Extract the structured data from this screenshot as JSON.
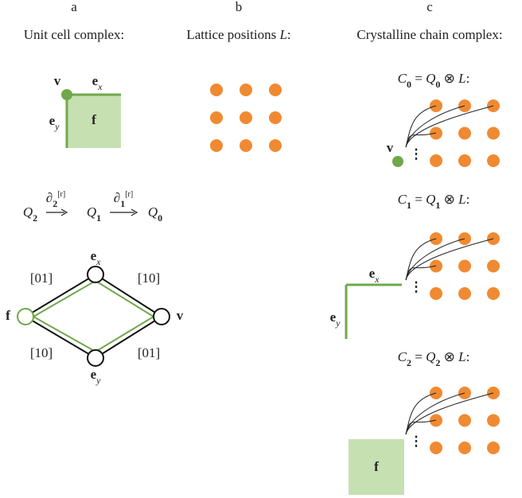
{
  "panels": [
    {
      "letter": "a",
      "title": [
        {
          "text": "Unit cell complex:"
        }
      ]
    },
    {
      "letter": "b",
      "title": [
        {
          "text": "Lattice positions "
        },
        {
          "text": "L",
          "style": "italic"
        },
        {
          "text": ":"
        }
      ]
    },
    {
      "letter": "c",
      "title": [
        {
          "text": "Crystalline chain complex:"
        }
      ]
    }
  ],
  "unit_cell": {
    "labels": [
      [
        {
          "text": "v",
          "style": "bold"
        }
      ],
      [
        {
          "text": "e",
          "style": "bold"
        },
        {
          "text": "x",
          "style": "sub"
        }
      ],
      [
        {
          "text": "e",
          "style": "bold"
        },
        {
          "text": "y",
          "style": "sub"
        }
      ],
      [
        {
          "text": "f",
          "style": "bold"
        }
      ]
    ]
  },
  "sequence": [
    [
      {
        "text": "Q",
        "style": "italic"
      },
      {
        "text": "2",
        "style": "boldsub"
      }
    ],
    [
      {
        "text": "∂",
        "style": "italic"
      },
      {
        "text": "2",
        "style": "boldsub"
      },
      {
        "text": "[r]",
        "style": "sup"
      }
    ],
    [
      {
        "text": "Q",
        "style": "italic"
      },
      {
        "text": "1",
        "style": "boldsub"
      }
    ],
    [
      {
        "text": "∂",
        "style": "italic"
      },
      {
        "text": "1",
        "style": "boldsub"
      },
      {
        "text": "[r]",
        "style": "sup"
      }
    ],
    [
      {
        "text": "Q",
        "style": "italic"
      },
      {
        "text": "0",
        "style": "boldsub"
      }
    ]
  ],
  "hasse": {
    "nodes": [
      [
        {
          "text": "e",
          "style": "bold"
        },
        {
          "text": "x",
          "style": "sub"
        }
      ],
      [
        {
          "text": "f",
          "style": "bold"
        }
      ],
      [
        {
          "text": "v",
          "style": "bold"
        }
      ],
      [
        {
          "text": "e",
          "style": "bold"
        },
        {
          "text": "y",
          "style": "sub"
        }
      ]
    ],
    "edge_labels": [
      "[01]",
      "[10]",
      "[10]",
      "[01]"
    ]
  },
  "chain": [
    {
      "equation": [
        {
          "text": "C",
          "style": "italic"
        },
        {
          "text": "0",
          "style": "boldsub"
        },
        {
          "text": " = "
        },
        {
          "text": "Q",
          "style": "italic"
        },
        {
          "text": "0",
          "style": "boldsub"
        },
        {
          "text": " ⊗ "
        },
        {
          "text": "L",
          "style": "italic"
        },
        {
          "text": ":"
        }
      ],
      "labels": [
        [
          {
            "text": "v",
            "style": "bold"
          }
        ]
      ],
      "ellipsis": "⋮"
    },
    {
      "equation": [
        {
          "text": "C",
          "style": "italic"
        },
        {
          "text": "1",
          "style": "boldsub"
        },
        {
          "text": " = "
        },
        {
          "text": "Q",
          "style": "italic"
        },
        {
          "text": "1",
          "style": "boldsub"
        },
        {
          "text": " ⊗ "
        },
        {
          "text": "L",
          "style": "italic"
        },
        {
          "text": ":"
        }
      ],
      "labels": [
        [
          {
            "text": "e",
            "style": "bold"
          },
          {
            "text": "x",
            "style": "sub"
          }
        ],
        [
          {
            "text": "e",
            "style": "bold"
          },
          {
            "text": "y",
            "style": "sub"
          }
        ]
      ],
      "ellipsis": "⋮"
    },
    {
      "equation": [
        {
          "text": "C",
          "style": "italic"
        },
        {
          "text": "2",
          "style": "boldsub"
        },
        {
          "text": " = "
        },
        {
          "text": "Q",
          "style": "italic"
        },
        {
          "text": "2",
          "style": "boldsub"
        },
        {
          "text": " ⊗ "
        },
        {
          "text": "L",
          "style": "italic"
        },
        {
          "text": ":"
        }
      ],
      "labels": [
        [
          {
            "text": "f",
            "style": "bold"
          }
        ]
      ],
      "ellipsis": "⋮"
    }
  ]
}
